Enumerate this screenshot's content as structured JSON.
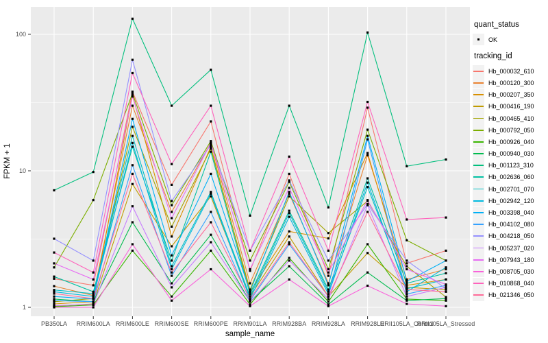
{
  "chart_data": {
    "type": "line",
    "title": "",
    "xlabel": "sample_name",
    "ylabel": "FPKM + 1",
    "y_scale": "log10",
    "y_ticks": [
      1,
      10,
      100
    ],
    "y_minor_ticks": [
      3.162,
      31.623
    ],
    "ylim": [
      0.9,
      155
    ],
    "grid": true,
    "legend_position": "right",
    "panel_bg": "#EBEBEB",
    "grid_color": "#FFFFFF",
    "point_color": "#000000",
    "tick_color": "#333333",
    "tick_label_color": "#4D4D4D",
    "categories": [
      "PB350LA",
      "RRIM600LA",
      "RRIM600LE",
      "RRIM600SE",
      "RRIM600PE",
      "RRIM901LA",
      "RRIM928BA",
      "RRIM928LA",
      "RRIM928LE",
      "RRII105LA_Control",
      "RRII105LA_Stressed"
    ],
    "series": [
      {
        "name": "Hb_000032_610",
        "color": "#F8766D",
        "values": [
          1.62,
          1.45,
          38,
          7.9,
          23,
          1.85,
          9.5,
          1.7,
          29,
          2.1,
          2.6
        ]
      },
      {
        "name": "Hb_000120_300",
        "color": "#EA8331",
        "values": [
          1.43,
          1.22,
          30,
          5.0,
          16,
          1.5,
          6.8,
          1.5,
          13,
          1.6,
          1.9
        ]
      },
      {
        "name": "Hb_000207_350",
        "color": "#D89000",
        "values": [
          1.06,
          1.1,
          36,
          3.3,
          15,
          1.3,
          3.6,
          3.2,
          13.5,
          1.45,
          1.6
        ]
      },
      {
        "name": "Hb_000416_190",
        "color": "#C09B00",
        "values": [
          1.02,
          1.06,
          8.0,
          2.8,
          6.5,
          1.2,
          3.3,
          1.2,
          2.5,
          1.4,
          1.35
        ]
      },
      {
        "name": "Hb_000465_410",
        "color": "#A3A500",
        "values": [
          1.1,
          1.16,
          21,
          3.9,
          14.5,
          1.35,
          6.5,
          3.5,
          6.0,
          2.0,
          1.19
        ]
      },
      {
        "name": "Hb_000792_050",
        "color": "#7CAE00",
        "values": [
          1.96,
          6.1,
          37,
          5.6,
          16.5,
          2.2,
          8.3,
          1.9,
          20,
          3.1,
          2.2
        ]
      },
      {
        "name": "Hb_000926_040",
        "color": "#39B600",
        "values": [
          1.01,
          1.04,
          2.6,
          1.2,
          2.6,
          1.05,
          2.3,
          1.1,
          2.9,
          1.15,
          1.12
        ]
      },
      {
        "name": "Hb_000940_030",
        "color": "#00BB4E",
        "values": [
          1.15,
          1.1,
          4.2,
          1.5,
          3.4,
          1.1,
          2.0,
          1.05,
          1.8,
          1.12,
          1.16
        ]
      },
      {
        "name": "Hb_001123_310",
        "color": "#00BF7D",
        "values": [
          7.2,
          9.8,
          130,
          30,
          55,
          4.7,
          30,
          5.4,
          103,
          10.8,
          12.1
        ]
      },
      {
        "name": "Hb_002636_060",
        "color": "#00C1A3",
        "values": [
          1.68,
          1.3,
          15,
          2.2,
          13.8,
          1.25,
          5.1,
          1.35,
          8.8,
          1.5,
          1.78
        ]
      },
      {
        "name": "Hb_002701_070",
        "color": "#00BFC4",
        "values": [
          1.34,
          1.26,
          18,
          2.0,
          7.0,
          1.2,
          4.9,
          1.3,
          7.6,
          1.37,
          1.6
        ]
      },
      {
        "name": "Hb_002942_120",
        "color": "#00BAE0",
        "values": [
          1.3,
          1.2,
          16,
          1.9,
          6.8,
          1.15,
          4.6,
          1.25,
          8.2,
          1.3,
          1.96
        ]
      },
      {
        "name": "Hb_003398_040",
        "color": "#00B0F6",
        "values": [
          1.2,
          1.15,
          24,
          2.4,
          9.5,
          1.3,
          7.0,
          1.45,
          18,
          1.55,
          2.2
        ]
      },
      {
        "name": "Hb_004102_080",
        "color": "#35A2FF",
        "values": [
          1.12,
          1.1,
          11,
          1.7,
          5.0,
          1.12,
          2.9,
          1.2,
          17,
          1.25,
          1.45
        ]
      },
      {
        "name": "Hb_004218_050",
        "color": "#9590FF",
        "values": [
          3.18,
          2.2,
          65,
          6.0,
          15.5,
          2.6,
          8.5,
          2.2,
          5.7,
          2.2,
          1.37
        ]
      },
      {
        "name": "Hb_005237_020",
        "color": "#C77CFF",
        "values": [
          1.03,
          1.05,
          5.5,
          1.4,
          3.0,
          1.1,
          2.2,
          1.15,
          5.6,
          1.2,
          1.4
        ]
      },
      {
        "name": "Hb_007943_180",
        "color": "#E76BF3",
        "values": [
          2.1,
          1.6,
          35,
          4.5,
          16,
          1.9,
          7.5,
          1.8,
          6.1,
          1.9,
          1.47
        ]
      },
      {
        "name": "Hb_008705_030",
        "color": "#FA62DB",
        "values": [
          1.0,
          1.0,
          2.9,
          1.12,
          1.9,
          1.02,
          1.6,
          1.02,
          1.44,
          1.06,
          1.02
        ]
      },
      {
        "name": "Hb_010868_040",
        "color": "#FF62BC",
        "values": [
          2.52,
          1.8,
          52,
          11.2,
          30,
          2.6,
          12.7,
          2.6,
          32,
          4.4,
          4.55
        ]
      },
      {
        "name": "Hb_021346_050",
        "color": "#FF6A98",
        "values": [
          1.26,
          1.16,
          9.5,
          1.8,
          4.2,
          1.15,
          3.0,
          1.2,
          5.0,
          1.35,
          1.3
        ]
      }
    ]
  },
  "legend": {
    "quant_status_title": "quant_status",
    "quant_status_items": [
      {
        "label": "OK"
      }
    ],
    "tracking_id_title": "tracking_id"
  }
}
